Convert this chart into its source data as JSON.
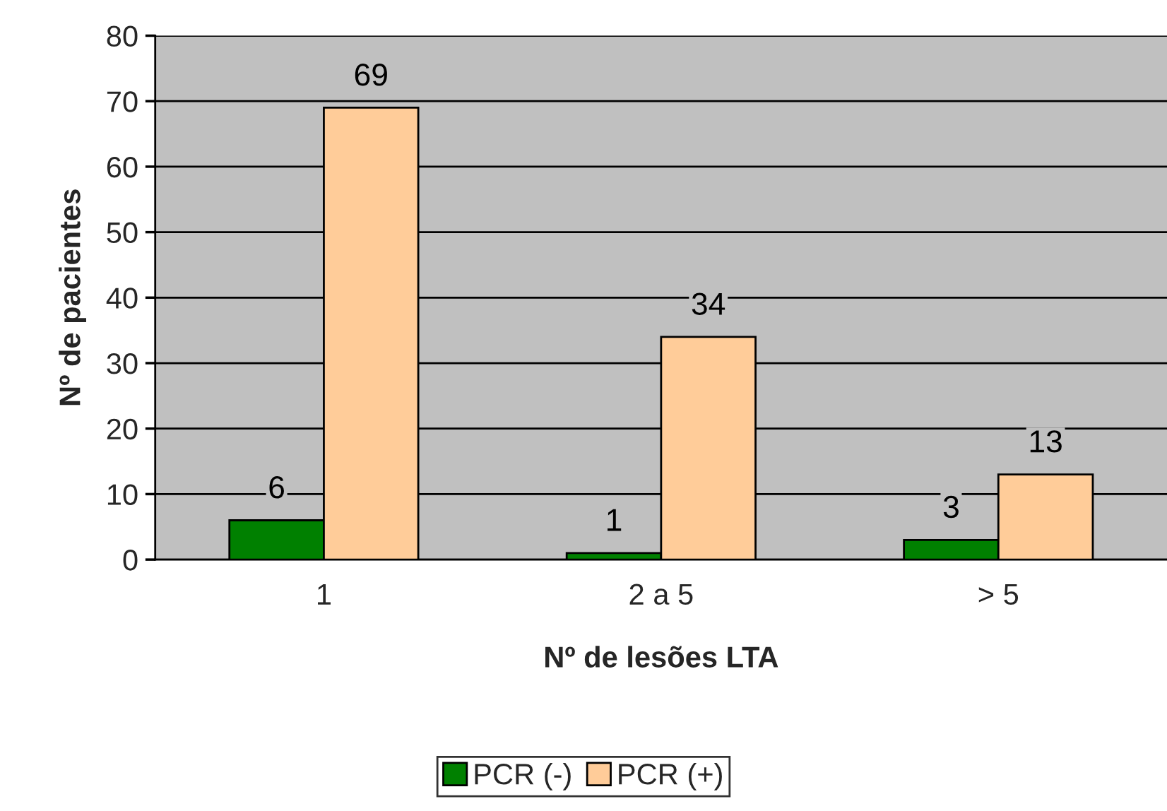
{
  "chart_data": {
    "type": "bar",
    "xlabel": "Nº de lesões LTA",
    "ylabel": "Nº de pacientes",
    "categories": [
      "1",
      "2 a 5",
      "> 5"
    ],
    "series": [
      {
        "name": "PCR (-)",
        "color": "#008000",
        "values": [
          6,
          1,
          3
        ]
      },
      {
        "name": "PCR (+)",
        "color": "#ffcc99",
        "values": [
          69,
          34,
          13
        ]
      }
    ],
    "ylim": [
      0,
      80
    ],
    "yticks": [
      0,
      10,
      20,
      30,
      40,
      50,
      60,
      70,
      80
    ],
    "grid": "y",
    "legend": "bottom",
    "data_labels": true
  }
}
